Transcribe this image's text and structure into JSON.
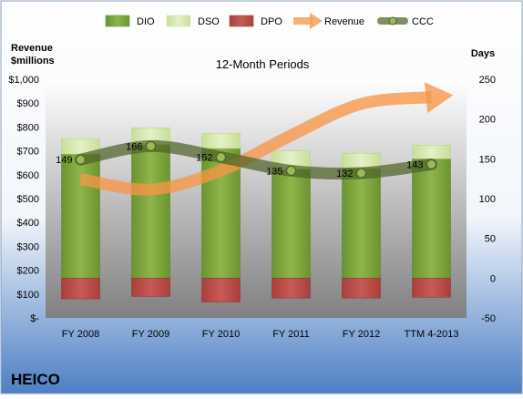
{
  "chart_data": {
    "type": "bar",
    "title": "12-Month Periods",
    "company": "HEICO",
    "left_axis_title_line1": "Revenue",
    "left_axis_title_line2": "$millions",
    "right_axis_title": "Days",
    "categories": [
      "FY 2008",
      "FY 2009",
      "FY 2010",
      "FY 2011",
      "FY 2012",
      "TTM 4-2013"
    ],
    "left_axis": {
      "ylim": [
        0,
        1000
      ],
      "ticks": [
        0,
        100,
        200,
        300,
        400,
        500,
        600,
        700,
        800,
        900,
        1000
      ],
      "tick_labels": [
        "$-",
        "$100",
        "$200",
        "$300",
        "$400",
        "$500",
        "$600",
        "$700",
        "$800",
        "$900",
        "$1,000"
      ]
    },
    "right_axis": {
      "ylim": [
        -50,
        250
      ],
      "ticks": [
        -50,
        0,
        50,
        100,
        150,
        200,
        250
      ],
      "tick_labels": [
        "-50",
        "0",
        "50",
        "100",
        "150",
        "200",
        "250"
      ]
    },
    "stacked_series_axis": "right",
    "series": [
      {
        "name": "DIO",
        "type": "bar",
        "color": "#7aa33a",
        "values": [
          156,
          168,
          163,
          137,
          138,
          150
        ]
      },
      {
        "name": "DSO",
        "type": "bar",
        "color": "#d4e7a8",
        "values": [
          19,
          21,
          19,
          23,
          19,
          17
        ]
      },
      {
        "name": "DPO",
        "type": "bar",
        "color": "#c0504d",
        "values": [
          -26,
          -23,
          -30,
          -25,
          -25,
          -24
        ]
      },
      {
        "name": "Revenue",
        "type": "line",
        "axis": "left",
        "color": "#f79646",
        "values": [
          582,
          538,
          617,
          765,
          897,
          925
        ]
      },
      {
        "name": "CCC",
        "type": "line",
        "axis": "right",
        "color": "#4f6228",
        "values": [
          149,
          166,
          152,
          135,
          132,
          143
        ]
      }
    ],
    "ccc_labels": [
      "149",
      "166",
      "152",
      "135",
      "132",
      "143"
    ],
    "legend_position": "top",
    "grid": false
  }
}
